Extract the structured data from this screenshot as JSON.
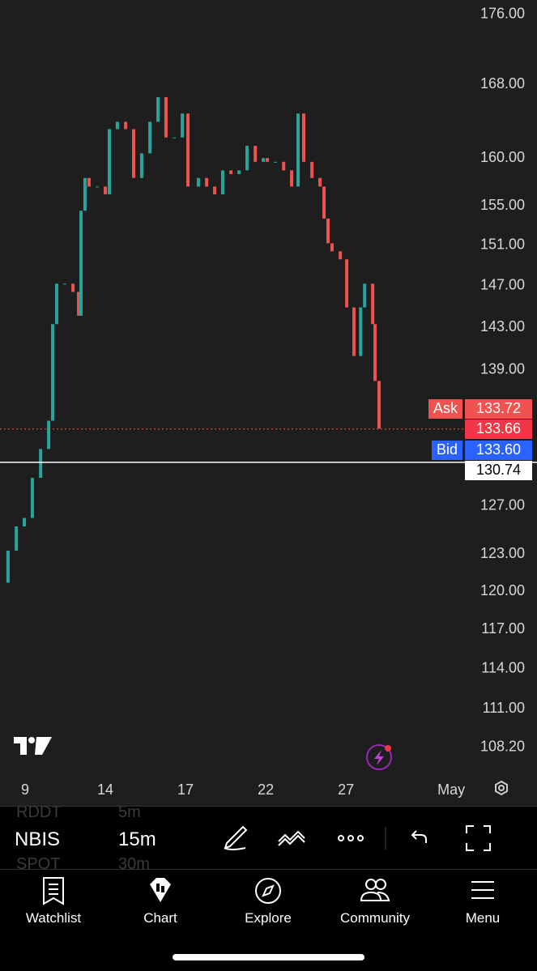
{
  "chart_data": {
    "type": "candlestick",
    "log_scale": true,
    "up_color": "#26a69a",
    "down_color": "#ef5350",
    "x": [
      -0.94,
      -0.64,
      -0.33,
      -0.03,
      0.27,
      0.58,
      0.88,
      1.03,
      1.18,
      1.48,
      1.79,
      2.0,
      2.09,
      2.24,
      2.39,
      2.7,
      3.0,
      3.15,
      3.45,
      3.76,
      4.06,
      4.36,
      4.67,
      4.97,
      5.27,
      5.58,
      5.88,
      6.09,
      6.48,
      6.79,
      7.09,
      7.39,
      7.7,
      8.0,
      8.3,
      8.61,
      8.91,
      9.06,
      9.36,
      9.67,
      9.97,
      10.21,
      10.42,
      10.73,
      11.03,
      11.18,
      11.33,
      11.48,
      11.79,
      12.03,
      12.3,
      12.55,
      12.7,
      13.0,
      13.09,
      13.24
    ],
    "values": [
      120.7,
      123.3,
      125.3,
      126.0,
      129.4,
      131.9,
      134.4,
      143.3,
      147.2,
      147.2,
      146.4,
      144.1,
      154.5,
      157.9,
      157.0,
      157.0,
      156.2,
      163.1,
      163.9,
      163.1,
      157.9,
      160.5,
      163.9,
      166.6,
      162.2,
      162.2,
      164.8,
      157.0,
      157.9,
      157.0,
      156.2,
      158.7,
      158.3,
      158.7,
      161.3,
      159.6,
      160.0,
      159.6,
      159.6,
      158.7,
      157.0,
      164.8,
      159.6,
      157.9,
      157.0,
      153.7,
      151.2,
      150.4,
      149.6,
      144.9,
      140.3,
      144.9,
      147.2,
      143.3,
      138.0,
      133.7
    ],
    "xlim": [
      -0.94,
      16.39
    ],
    "xticks": [
      {
        "value": 0,
        "label": "9"
      },
      {
        "value": 3,
        "label": "14"
      },
      {
        "value": 6,
        "label": "17"
      },
      {
        "value": 9,
        "label": "22"
      },
      {
        "value": 12,
        "label": "27"
      },
      {
        "value": 15.94,
        "label": "May"
      }
    ],
    "ylim": [
      106.35,
      177.7
    ],
    "yticks": [
      {
        "value": 176,
        "label": "176.00"
      },
      {
        "value": 168,
        "label": "168.00"
      },
      {
        "value": 160,
        "label": "160.00"
      },
      {
        "value": 155,
        "label": "155.00"
      },
      {
        "value": 151,
        "label": "151.00"
      },
      {
        "value": 147,
        "label": "147.00"
      },
      {
        "value": 143,
        "label": "143.00"
      },
      {
        "value": 139,
        "label": "139.00"
      },
      {
        "value": 127,
        "label": "127.00"
      },
      {
        "value": 123,
        "label": "123.00"
      },
      {
        "value": 120,
        "label": "120.00"
      },
      {
        "value": 117,
        "label": "117.00"
      },
      {
        "value": 114,
        "label": "114.00"
      },
      {
        "value": 111,
        "label": "111.00"
      },
      {
        "value": 108.2,
        "label": "108.20"
      }
    ],
    "ask_label": "Ask",
    "ask": "133.72",
    "last_price": 133.66,
    "bid_label": "Bid",
    "bid": "133.60",
    "crosshair_price": 130.74
  },
  "toolbar": {
    "symbols": [
      "RDDT",
      "NBIS",
      "SPOT"
    ],
    "intervals": [
      "5m",
      "15m",
      "30m"
    ]
  },
  "nav": [
    "Watchlist",
    "Chart",
    "Explore",
    "Community",
    "Menu"
  ]
}
